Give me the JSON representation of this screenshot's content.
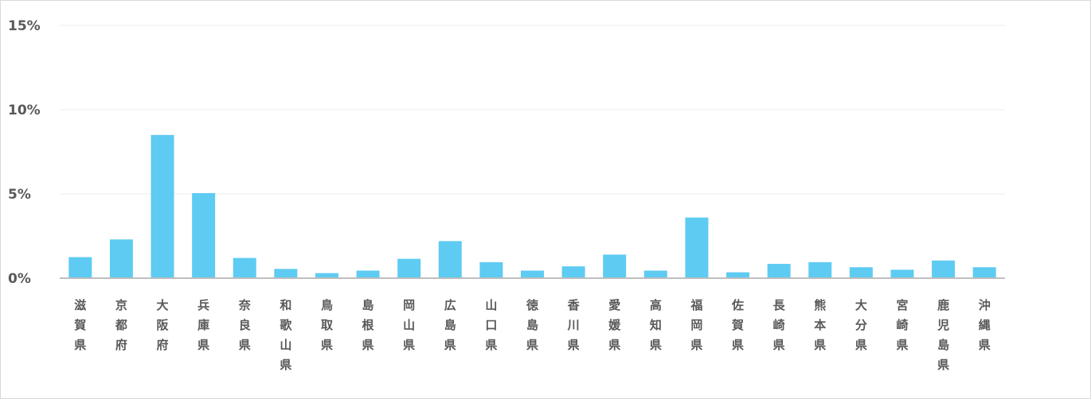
{
  "chart_data": {
    "type": "bar",
    "title": "",
    "xlabel": "",
    "ylabel": "",
    "ylim": [
      0,
      15
    ],
    "yticks": [
      0,
      5,
      10,
      15
    ],
    "ytick_labels": [
      "0%",
      "5%",
      "10%",
      "15%"
    ],
    "grid": true,
    "legend": "none",
    "colors": {
      "bar": "#5ecbf2",
      "grid": "#eeeeee",
      "axis": "#bfbfbf",
      "text": "#595959"
    },
    "categories": [
      "滋賀県",
      "京都府",
      "大阪府",
      "兵庫県",
      "奈良県",
      "和歌山県",
      "鳥取県",
      "島根県",
      "岡山県",
      "広島県",
      "山口県",
      "徳島県",
      "香川県",
      "愛媛県",
      "高知県",
      "福岡県",
      "佐賀県",
      "長崎県",
      "熊本県",
      "大分県",
      "宮崎県",
      "鹿児島県",
      "沖縄県"
    ],
    "series": [
      {
        "values": [
          1.25,
          2.3,
          8.5,
          5.05,
          1.2,
          0.55,
          0.3,
          0.45,
          1.15,
          2.2,
          0.95,
          0.45,
          0.7,
          1.4,
          0.45,
          3.6,
          0.35,
          0.85,
          0.95,
          0.65,
          0.5,
          1.05,
          0.65
        ]
      }
    ]
  }
}
